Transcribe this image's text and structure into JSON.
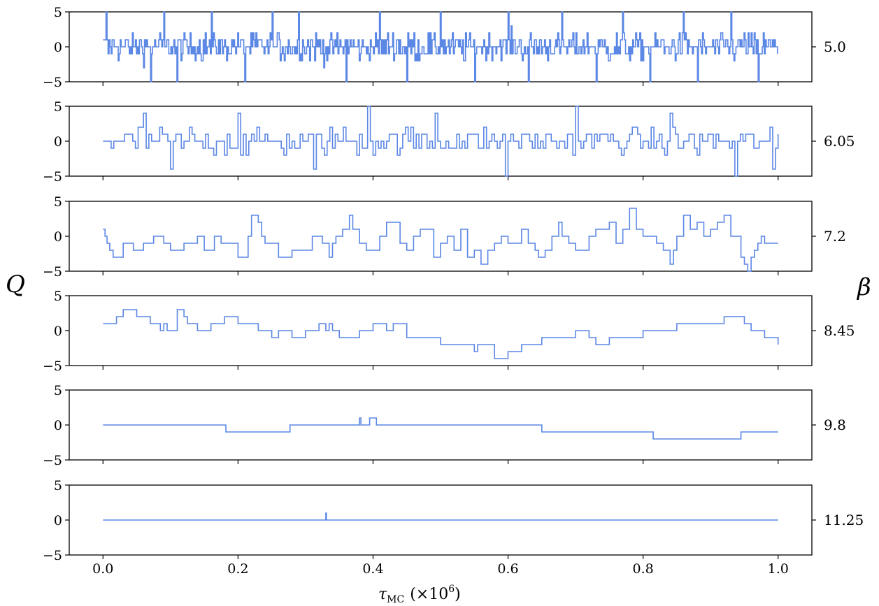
{
  "chart_data": {
    "type": "line",
    "ylabel_left": "Q",
    "ylabel_right": "β",
    "xlabel_main": "τ",
    "xlabel_sub": "MC",
    "xlabel_unit_prefix": "(×10",
    "xlabel_unit_exp": "6",
    "xlabel_unit_suffix": ")",
    "xlim": [
      -0.05,
      1.05
    ],
    "ylim": [
      -5,
      5
    ],
    "yticks": [
      5,
      0,
      -5
    ],
    "ytick_labels": [
      "5",
      "0",
      "−5"
    ],
    "xticks": [
      0.0,
      0.2,
      0.4,
      0.6,
      0.8,
      1.0
    ],
    "xtick_labels": [
      "0.0",
      "0.2",
      "0.4",
      "0.6",
      "0.8",
      "1.0"
    ],
    "line_color": "#5b87e5",
    "panels": [
      {
        "beta_label": "5.0",
        "kind": "noise",
        "noise": {
          "step": 0.0015,
          "bound": 4,
          "extremes": [
            [
              0.004,
              5
            ],
            [
              0.07,
              -5
            ],
            [
              0.09,
              5
            ],
            [
              0.11,
              -5
            ],
            [
              0.16,
              5
            ],
            [
              0.21,
              -5
            ],
            [
              0.25,
              5
            ],
            [
              0.29,
              5
            ],
            [
              0.36,
              -5
            ],
            [
              0.41,
              5
            ],
            [
              0.45,
              -5
            ],
            [
              0.5,
              5
            ],
            [
              0.55,
              -5
            ],
            [
              0.6,
              5
            ],
            [
              0.63,
              -5
            ],
            [
              0.68,
              5
            ],
            [
              0.73,
              -5
            ],
            [
              0.77,
              5
            ],
            [
              0.81,
              -5
            ],
            [
              0.86,
              5
            ],
            [
              0.88,
              -5
            ],
            [
              0.93,
              5
            ],
            [
              0.97,
              -5
            ]
          ]
        }
      },
      {
        "beta_label": "6.05",
        "kind": "noise",
        "noise": {
          "step": 0.004,
          "bound": 3,
          "extremes": [
            [
              0.06,
              4
            ],
            [
              0.1,
              -4
            ],
            [
              0.2,
              4
            ],
            [
              0.31,
              -4
            ],
            [
              0.39,
              5
            ],
            [
              0.49,
              4
            ],
            [
              0.595,
              -5
            ],
            [
              0.7,
              5
            ],
            [
              0.84,
              4
            ],
            [
              0.935,
              -5
            ],
            [
              0.99,
              -4
            ]
          ]
        }
      },
      {
        "beta_label": "7.2",
        "kind": "steps",
        "x": [
          0.0,
          0.003,
          0.006,
          0.01,
          0.015,
          0.03,
          0.045,
          0.06,
          0.075,
          0.09,
          0.1,
          0.12,
          0.14,
          0.15,
          0.165,
          0.175,
          0.18,
          0.2,
          0.215,
          0.22,
          0.23,
          0.235,
          0.24,
          0.26,
          0.28,
          0.3,
          0.31,
          0.325,
          0.335,
          0.34,
          0.345,
          0.355,
          0.365,
          0.37,
          0.38,
          0.39,
          0.41,
          0.42,
          0.44,
          0.45,
          0.46,
          0.47,
          0.49,
          0.5,
          0.51,
          0.52,
          0.53,
          0.54,
          0.55,
          0.56,
          0.57,
          0.58,
          0.59,
          0.6,
          0.61,
          0.62,
          0.63,
          0.64,
          0.645,
          0.655,
          0.665,
          0.675,
          0.68,
          0.69,
          0.7,
          0.72,
          0.73,
          0.75,
          0.76,
          0.77,
          0.78,
          0.79,
          0.8,
          0.82,
          0.83,
          0.84,
          0.845,
          0.85,
          0.86,
          0.87,
          0.88,
          0.89,
          0.9,
          0.91,
          0.92,
          0.93,
          0.945,
          0.95,
          0.955,
          0.96,
          0.965,
          0.97,
          0.975,
          0.98,
          0.99,
          1.0
        ],
        "y": [
          1,
          0,
          -1,
          -2,
          -3,
          -1,
          -2,
          -1,
          0,
          -1,
          -2,
          -1,
          0,
          -2,
          0,
          -1,
          -1,
          -3,
          0,
          3,
          2,
          0,
          -1,
          -3,
          -2,
          -2,
          0,
          -1,
          -3,
          -1,
          0,
          1,
          3,
          1,
          -1,
          -2,
          0,
          2,
          -1,
          -2,
          0,
          1,
          -3,
          -1,
          0,
          -2,
          1,
          -3,
          -2,
          -4,
          -2,
          -1,
          0,
          -1,
          -1,
          1,
          -1,
          -2,
          -3,
          -2,
          0,
          2,
          0,
          -1,
          -2,
          0,
          1,
          2,
          -1,
          1,
          4,
          1,
          0,
          -1,
          -2,
          -4,
          -2,
          0,
          3,
          1,
          2,
          0,
          1,
          2,
          3,
          0,
          -3,
          -4,
          -5,
          -3,
          -2,
          -1,
          0,
          -1,
          -1,
          -1
        ]
      },
      {
        "beta_label": "8.45",
        "kind": "steps",
        "x": [
          0.0,
          0.02,
          0.03,
          0.05,
          0.07,
          0.085,
          0.09,
          0.095,
          0.11,
          0.12,
          0.125,
          0.14,
          0.16,
          0.18,
          0.2,
          0.23,
          0.25,
          0.26,
          0.28,
          0.3,
          0.32,
          0.33,
          0.335,
          0.34,
          0.345,
          0.35,
          0.38,
          0.4,
          0.42,
          0.43,
          0.45,
          0.5,
          0.55,
          0.555,
          0.58,
          0.6,
          0.62,
          0.65,
          0.7,
          0.72,
          0.73,
          0.75,
          0.8,
          0.85,
          0.92,
          0.95,
          0.96,
          0.98,
          1.0
        ],
        "y": [
          1,
          2,
          3,
          2,
          1,
          0,
          1,
          0,
          3,
          2,
          1,
          0,
          1,
          2,
          1,
          0,
          -1,
          0,
          -1,
          0,
          1,
          0,
          1,
          0,
          0,
          -1,
          0,
          1,
          0,
          1,
          -1,
          -2,
          -3,
          -2,
          -4,
          -3,
          -2,
          -1,
          0,
          -1,
          -2,
          -1,
          0,
          1,
          2,
          1,
          0,
          -1,
          -2
        ]
      },
      {
        "beta_label": "9.8",
        "kind": "steps",
        "x": [
          0.0,
          0.182,
          0.277,
          0.38,
          0.382,
          0.395,
          0.4,
          0.405,
          0.65,
          0.815,
          0.945,
          1.0
        ],
        "y": [
          0,
          -1,
          0,
          1,
          0,
          1,
          1,
          0,
          -1,
          -2,
          -1,
          -1
        ]
      },
      {
        "beta_label": "11.25",
        "kind": "spike",
        "x": [
          0.0,
          0.33,
          0.33,
          0.331,
          0.331,
          1.0
        ],
        "y": [
          0,
          0,
          1,
          1,
          0,
          0
        ]
      }
    ]
  }
}
